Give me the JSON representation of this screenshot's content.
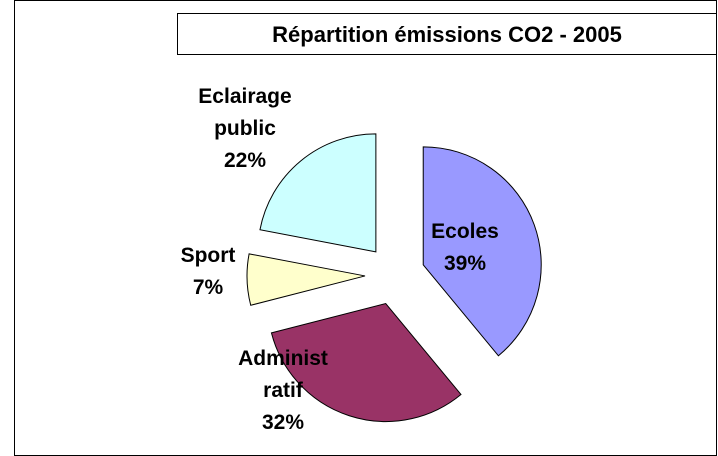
{
  "chart_data": {
    "type": "pie",
    "title": "Répartition émissions CO2 - 2005",
    "categories": [
      "Ecoles",
      "Administ ratif",
      "Sport",
      "Eclairage public"
    ],
    "values": [
      39,
      32,
      7,
      22
    ],
    "value_labels": [
      "39%",
      "32%",
      "7%",
      "22%"
    ],
    "colors": [
      "#9999ff",
      "#993366",
      "#ffffcc",
      "#ccffff"
    ]
  }
}
